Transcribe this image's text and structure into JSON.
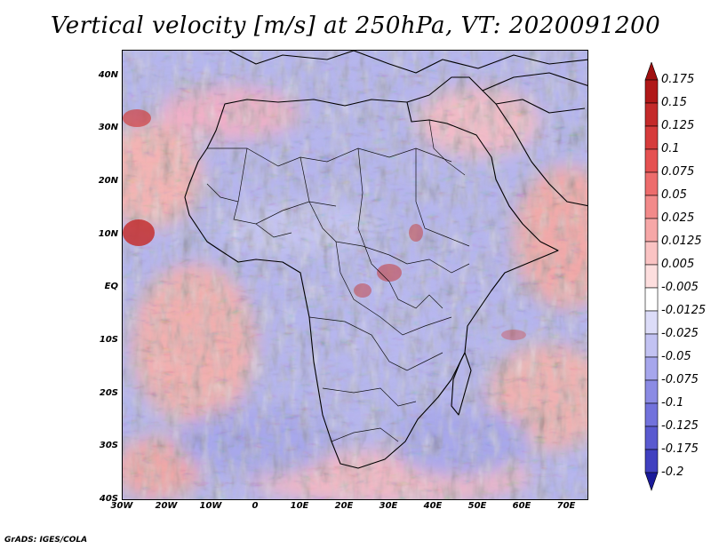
{
  "title": "Vertical velocity [m/s] at 250hPa, VT: 2020091200",
  "credit": "GrADS: IGES/COLA",
  "map": {
    "lon_range": [
      -30,
      75
    ],
    "lat_range": [
      -40,
      45
    ],
    "lat_ticks": [
      {
        "label": "40N",
        "lat": 40
      },
      {
        "label": "30N",
        "lat": 30
      },
      {
        "label": "20N",
        "lat": 20
      },
      {
        "label": "10N",
        "lat": 10
      },
      {
        "label": "EQ",
        "lat": 0
      },
      {
        "label": "10S",
        "lat": -10
      },
      {
        "label": "20S",
        "lat": -20
      },
      {
        "label": "30S",
        "lat": -30
      },
      {
        "label": "40S",
        "lat": -40
      }
    ],
    "lon_ticks": [
      {
        "label": "30W",
        "lon": -30
      },
      {
        "label": "20W",
        "lon": -20
      },
      {
        "label": "10W",
        "lon": -10
      },
      {
        "label": "0",
        "lon": 0
      },
      {
        "label": "10E",
        "lon": 10
      },
      {
        "label": "20E",
        "lon": 20
      },
      {
        "label": "30E",
        "lon": 30
      },
      {
        "label": "40E",
        "lon": 40
      },
      {
        "label": "50E",
        "lon": 50
      },
      {
        "label": "60E",
        "lon": 60
      },
      {
        "label": "70E",
        "lon": 70
      }
    ]
  },
  "colorbar": {
    "levels": [
      {
        "label": "0.175",
        "color": "#b01818"
      },
      {
        "label": "0.15",
        "color": "#c42a2a"
      },
      {
        "label": "0.125",
        "color": "#d63b3b"
      },
      {
        "label": "0.1",
        "color": "#e55151"
      },
      {
        "label": "0.075",
        "color": "#ed6c6c"
      },
      {
        "label": "0.05",
        "color": "#f28a8a"
      },
      {
        "label": "0.025",
        "color": "#f6a7a7"
      },
      {
        "label": "0.0125",
        "color": "#fac3c3"
      },
      {
        "label": "0.005",
        "color": "#fddede"
      },
      {
        "label": "-0.005",
        "color": "#ffffff"
      },
      {
        "label": "-0.0125",
        "color": "#dcdcf8"
      },
      {
        "label": "-0.025",
        "color": "#c2c2f2"
      },
      {
        "label": "-0.05",
        "color": "#a6a6ec"
      },
      {
        "label": "-0.075",
        "color": "#8b8be4"
      },
      {
        "label": "-0.1",
        "color": "#7272dc"
      },
      {
        "label": "-0.125",
        "color": "#5a5ad0"
      },
      {
        "label": "-0.175",
        "color": "#4040c0"
      },
      {
        "label": "-0.2",
        "color": "#2a2aaa"
      }
    ],
    "top_arrow_color": "#a01010",
    "bottom_arrow_color": "#1a1a9a"
  },
  "colors": {
    "land_border": "#000000",
    "background_blue": "#b6b6ee",
    "background_red": "#f4b4b4"
  }
}
